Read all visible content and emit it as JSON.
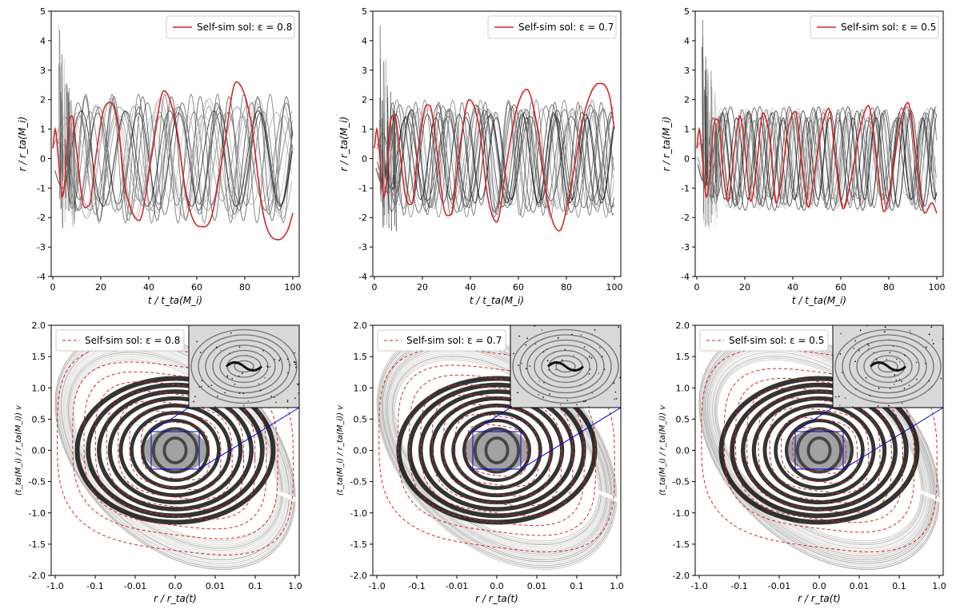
{
  "chart_data": [
    {
      "type": "line",
      "panel": "top-left",
      "legend_label": "Self-sim sol: ε = 0.8",
      "legend_position": "top-right",
      "xlabel": "t / t_ta(M_i)",
      "ylabel": "r / r_ta(M_i)",
      "xlim": [
        0,
        100
      ],
      "ylim": [
        -4,
        5
      ],
      "xticks": [
        "0",
        "20",
        "40",
        "60",
        "80",
        "100"
      ],
      "yticks": [
        "5",
        "4",
        "3",
        "2",
        "1",
        "0",
        "-1",
        "-2",
        "-3",
        "-4"
      ],
      "series": [
        {
          "name": "Self-sim sol",
          "color": "#d62728",
          "role": "self-similar",
          "x": [
            0,
            1,
            2,
            4,
            5.2,
            6.5,
            8,
            10,
            12.5,
            15,
            18,
            21,
            24,
            27,
            30,
            33,
            36,
            41,
            46.3,
            51,
            56,
            61,
            66,
            71,
            76.4,
            82,
            88,
            94,
            98,
            100
          ],
          "y": [
            0.35,
            1.0,
            0.3,
            -1.3,
            -0.6,
            1.05,
            1.45,
            0.2,
            -1.5,
            -1.6,
            0.1,
            1.6,
            1.9,
            1.2,
            -0.9,
            -1.8,
            -2.1,
            0.0,
            2.3,
            1.3,
            -1.4,
            -2.3,
            -2.0,
            0.2,
            2.6,
            1.5,
            -2.0,
            -2.75,
            -2.4,
            -1.85
          ]
        },
        {
          "name": "Particle trajectories",
          "color": "#000000",
          "role": "n-body",
          "period_range": [
            10,
            25
          ],
          "amplitude_range": [
            1.4,
            2.2
          ],
          "count": 16
        }
      ]
    },
    {
      "type": "line",
      "panel": "top-middle",
      "legend_label": "Self-sim sol: ε = 0.7",
      "legend_position": "top-right",
      "xlabel": "t / t_ta(M_i)",
      "ylabel": "r / r_ta(M_i)",
      "xlim": [
        0,
        100
      ],
      "ylim": [
        -4,
        5
      ],
      "xticks": [
        "0",
        "20",
        "40",
        "60",
        "80",
        "100"
      ],
      "yticks": [
        "5",
        "4",
        "3",
        "2",
        "1",
        "0",
        "-1",
        "-2",
        "-3",
        "-4"
      ],
      "series": [
        {
          "name": "Self-sim sol",
          "color": "#d62728",
          "role": "self-similar",
          "x": [
            0,
            1,
            2,
            4,
            5.2,
            6.5,
            8.5,
            10.5,
            13,
            15.5,
            18,
            21,
            23,
            26,
            29,
            32,
            35,
            39.5,
            44,
            47,
            51,
            55,
            59,
            63.5,
            68,
            72,
            77,
            82,
            87,
            93.5,
            98,
            100
          ],
          "y": [
            0.35,
            1.0,
            0.3,
            -1.3,
            -0.6,
            1.1,
            1.45,
            0.3,
            -1.3,
            -1.55,
            0.1,
            1.7,
            1.8,
            0.3,
            -1.7,
            -1.9,
            0.0,
            2.0,
            0.9,
            -1.2,
            -2.15,
            -0.2,
            1.6,
            2.35,
            1.0,
            -1.4,
            -2.45,
            -0.9,
            1.4,
            2.55,
            2.1,
            1.0
          ]
        },
        {
          "name": "Particle trajectories",
          "color": "#000000",
          "role": "n-body",
          "period_range": [
            9,
            20
          ],
          "amplitude_range": [
            1.3,
            2.0
          ],
          "count": 16
        }
      ]
    },
    {
      "type": "line",
      "panel": "top-right",
      "legend_label": "Self-sim sol: ε = 0.5",
      "legend_position": "top-right",
      "xlabel": "t / t_ta(M_i)",
      "ylabel": "r / r_ta(M_i)",
      "xlim": [
        0,
        100
      ],
      "ylim": [
        -4,
        5
      ],
      "xticks": [
        "0",
        "20",
        "40",
        "60",
        "80",
        "100"
      ],
      "yticks": [
        "5",
        "4",
        "3",
        "2",
        "1",
        "0",
        "-1",
        "-2",
        "-3",
        "-4"
      ],
      "series": [
        {
          "name": "Self-sim sol",
          "color": "#d62728",
          "role": "self-similar",
          "x": [
            0,
            1,
            2,
            4,
            5.5,
            7,
            9,
            11,
            13,
            15.5,
            18,
            20,
            22.5,
            25,
            27.5,
            30.5,
            33,
            35.5,
            38,
            41,
            44,
            46.5,
            49,
            52,
            55,
            58,
            61,
            64.5,
            68,
            71.5,
            75,
            78,
            81,
            84.5,
            88,
            91.5,
            95,
            98,
            100
          ],
          "y": [
            0.35,
            1.0,
            0.3,
            -1.3,
            -0.5,
            1.1,
            1.3,
            -0.5,
            -1.45,
            0.2,
            1.45,
            0.4,
            -1.45,
            -0.2,
            1.55,
            0.6,
            -1.5,
            -0.6,
            1.0,
            1.6,
            -0.3,
            -1.65,
            -0.5,
            1.0,
            1.7,
            -0.2,
            -1.7,
            -0.6,
            1.0,
            1.8,
            -0.1,
            -1.8,
            -0.8,
            1.1,
            1.9,
            -0.1,
            -1.85,
            -1.5,
            -1.85
          ]
        },
        {
          "name": "Particle trajectories",
          "color": "#000000",
          "role": "n-body",
          "period_range": [
            9,
            12.5
          ],
          "amplitude_range": [
            1.2,
            1.8
          ],
          "count": 16
        }
      ]
    },
    {
      "type": "scatter",
      "panel": "bottom-left",
      "legend_label": "Self-sim sol: ε = 0.8",
      "legend_position": "top-left",
      "xlabel": "r / r_ta(t)",
      "ylabel": "(t_ta(M_i) / r_ta(M_i)) v",
      "x_scale": "symlog",
      "xlim": [
        -1.0,
        1.0
      ],
      "ylim": [
        -2.0,
        2.0
      ],
      "xticks": [
        "-1.0",
        "-0.1",
        "-0.01",
        "0.0",
        "0.01",
        "0.1",
        "1.0"
      ],
      "yticks": [
        "2.0",
        "1.5",
        "1.0",
        "0.5",
        "0.0",
        "-0.5",
        "-1.0",
        "-1.5",
        "-2.0"
      ],
      "self_similar_orbits": {
        "color": "#d62728",
        "style": "dashed",
        "v_amplitudes": [
          0.45,
          0.6,
          0.75,
          0.9,
          1.05,
          1.2,
          1.35,
          1.6
        ]
      },
      "inset": {
        "region_x": [
          -0.006,
          0.006
        ],
        "region_y": [
          -0.3,
          0.3
        ],
        "box_color": "#0000cc"
      }
    },
    {
      "type": "scatter",
      "panel": "bottom-middle",
      "legend_label": "Self-sim sol: ε = 0.7",
      "legend_position": "top-left",
      "xlabel": "r / r_ta(t)",
      "ylabel": "(t_ta(M_i) / r_ta(M_i)) v",
      "x_scale": "symlog",
      "xlim": [
        -1.0,
        1.0
      ],
      "ylim": [
        -2.0,
        2.0
      ],
      "xticks": [
        "-1.0",
        "-0.1",
        "-0.01",
        "0.0",
        "0.01",
        "0.1",
        "1.0"
      ],
      "yticks": [
        "2.0",
        "1.5",
        "1.0",
        "0.5",
        "0.0",
        "-0.5",
        "-1.0",
        "-1.5",
        "-2.0"
      ],
      "self_similar_orbits": {
        "color": "#d62728",
        "style": "dashed",
        "v_amplitudes": [
          0.4,
          0.55,
          0.7,
          0.85,
          1.0,
          1.15,
          1.3,
          1.55
        ]
      },
      "inset": {
        "region_x": [
          -0.006,
          0.006
        ],
        "region_y": [
          -0.3,
          0.3
        ],
        "box_color": "#0000cc"
      }
    },
    {
      "type": "scatter",
      "panel": "bottom-right",
      "legend_label": "Self-sim sol: ε = 0.5",
      "legend_position": "top-left",
      "xlabel": "r / r_ta(t)",
      "ylabel": "(t_ta(M_i) / r_ta(M_i)) v",
      "x_scale": "symlog",
      "xlim": [
        -1.0,
        1.0
      ],
      "ylim": [
        -2.0,
        2.0
      ],
      "xticks": [
        "-1.0",
        "-0.1",
        "-0.01",
        "0.0",
        "0.01",
        "0.1",
        "1.0"
      ],
      "yticks": [
        "2.0",
        "1.5",
        "1.0",
        "0.5",
        "0.0",
        "-0.5",
        "-1.0",
        "-1.5",
        "-2.0"
      ],
      "self_similar_orbits": {
        "color": "#d62728",
        "style": "dashed",
        "v_amplitudes": [
          0.35,
          0.5,
          0.65,
          0.8,
          0.95,
          1.1,
          1.25,
          1.55
        ]
      },
      "inset": {
        "region_x": [
          -0.006,
          0.006
        ],
        "region_y": [
          -0.3,
          0.3
        ],
        "box_color": "#0000cc"
      }
    }
  ]
}
